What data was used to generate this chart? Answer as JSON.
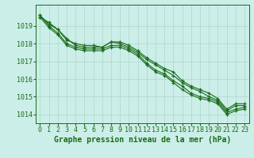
{
  "title": "Graphe pression niveau de la mer (hPa)",
  "xlabel_hours": [
    0,
    1,
    2,
    3,
    4,
    5,
    6,
    7,
    8,
    9,
    10,
    11,
    12,
    13,
    14,
    15,
    16,
    17,
    18,
    19,
    20,
    21,
    22,
    23
  ],
  "line1": [
    1019.6,
    1019.1,
    1018.8,
    1018.3,
    1017.9,
    1017.8,
    1017.8,
    1017.8,
    1018.1,
    1018.0,
    1017.8,
    1017.5,
    1017.1,
    1016.8,
    1016.5,
    1016.2,
    1015.8,
    1015.5,
    1015.3,
    1015.0,
    1014.8,
    1014.2,
    1014.5,
    1014.5
  ],
  "line2": [
    1019.6,
    1019.0,
    1018.6,
    1018.0,
    1017.8,
    1017.7,
    1017.7,
    1017.7,
    1017.9,
    1017.9,
    1017.7,
    1017.4,
    1016.9,
    1016.5,
    1016.3,
    1015.9,
    1015.6,
    1015.2,
    1015.0,
    1014.9,
    1014.7,
    1014.1,
    1014.3,
    1014.4
  ],
  "line3": [
    1019.5,
    1018.9,
    1018.5,
    1017.9,
    1017.7,
    1017.6,
    1017.6,
    1017.6,
    1017.8,
    1017.8,
    1017.6,
    1017.3,
    1016.8,
    1016.4,
    1016.2,
    1015.8,
    1015.4,
    1015.1,
    1014.9,
    1014.8,
    1014.6,
    1014.0,
    1014.2,
    1014.3
  ],
  "line4": [
    1019.5,
    1019.2,
    1018.8,
    1018.2,
    1018.0,
    1017.9,
    1017.9,
    1017.8,
    1018.1,
    1018.1,
    1017.9,
    1017.6,
    1017.2,
    1016.9,
    1016.6,
    1016.4,
    1015.9,
    1015.6,
    1015.4,
    1015.2,
    1014.9,
    1014.3,
    1014.6,
    1014.6
  ],
  "ylim": [
    1013.5,
    1020.2
  ],
  "yticks": [
    1014,
    1015,
    1016,
    1017,
    1018,
    1019
  ],
  "bg_color": "#cceee8",
  "grid_color": "#aad8cc",
  "line_color": "#1a6b1a",
  "title_color": "#1a6b1a",
  "title_fontsize": 7.0,
  "tick_fontsize": 6.0
}
